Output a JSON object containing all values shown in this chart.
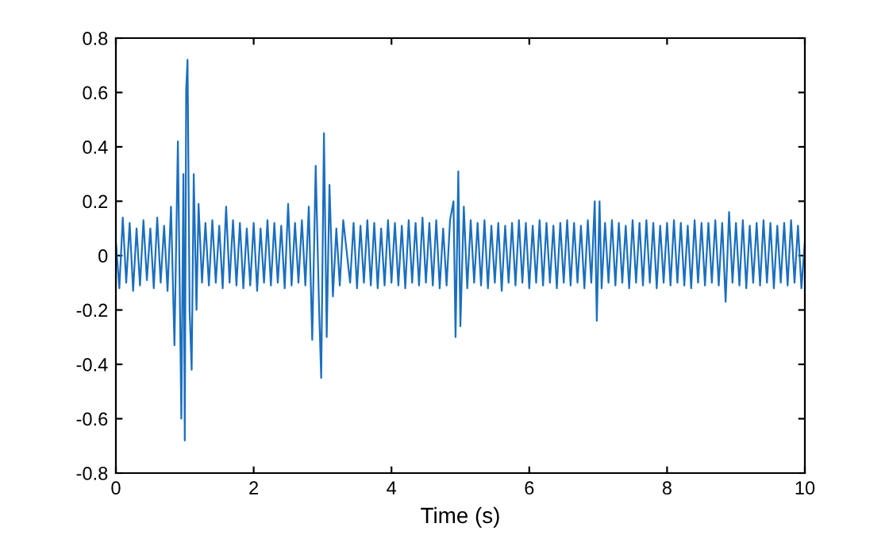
{
  "chart_data": {
    "type": "line",
    "xlabel": "Time (s)",
    "x": [
      0,
      0.05,
      0.1,
      0.15,
      0.2,
      0.25,
      0.3,
      0.35,
      0.4,
      0.45,
      0.5,
      0.55,
      0.6,
      0.65,
      0.7,
      0.75,
      0.8,
      0.85,
      0.9,
      0.95,
      0.98,
      1.0,
      1.02,
      1.04,
      1.07,
      1.1,
      1.13,
      1.17,
      1.2,
      1.25,
      1.3,
      1.35,
      1.4,
      1.45,
      1.5,
      1.55,
      1.6,
      1.65,
      1.7,
      1.75,
      1.8,
      1.85,
      1.9,
      1.95,
      2.0,
      2.05,
      2.1,
      2.15,
      2.2,
      2.25,
      2.3,
      2.35,
      2.4,
      2.45,
      2.5,
      2.55,
      2.6,
      2.65,
      2.7,
      2.75,
      2.8,
      2.85,
      2.9,
      2.95,
      2.98,
      3.02,
      3.06,
      3.1,
      3.15,
      3.2,
      3.25,
      3.3,
      3.4,
      3.45,
      3.5,
      3.55,
      3.6,
      3.65,
      3.7,
      3.75,
      3.8,
      3.85,
      3.9,
      3.95,
      4.0,
      4.05,
      4.1,
      4.15,
      4.2,
      4.25,
      4.3,
      4.35,
      4.4,
      4.45,
      4.5,
      4.55,
      4.6,
      4.65,
      4.7,
      4.75,
      4.8,
      4.85,
      4.9,
      4.93,
      4.97,
      5.0,
      5.05,
      5.1,
      5.15,
      5.2,
      5.25,
      5.3,
      5.35,
      5.4,
      5.45,
      5.5,
      5.55,
      5.6,
      5.65,
      5.7,
      5.75,
      5.8,
      5.85,
      5.9,
      5.95,
      6.0,
      6.05,
      6.1,
      6.15,
      6.2,
      6.25,
      6.3,
      6.35,
      6.4,
      6.45,
      6.5,
      6.55,
      6.6,
      6.65,
      6.7,
      6.75,
      6.8,
      6.85,
      6.9,
      6.95,
      6.98,
      7.02,
      7.05,
      7.1,
      7.15,
      7.2,
      7.25,
      7.3,
      7.35,
      7.4,
      7.45,
      7.5,
      7.55,
      7.6,
      7.65,
      7.7,
      7.75,
      7.8,
      7.85,
      7.9,
      7.95,
      8.0,
      8.05,
      8.1,
      8.15,
      8.2,
      8.25,
      8.3,
      8.35,
      8.4,
      8.45,
      8.5,
      8.55,
      8.6,
      8.65,
      8.7,
      8.75,
      8.8,
      8.85,
      8.9,
      8.95,
      9.0,
      9.05,
      9.1,
      9.15,
      9.2,
      9.25,
      9.3,
      9.35,
      9.4,
      9.45,
      9.5,
      9.55,
      9.6,
      9.65,
      9.7,
      9.75,
      9.8,
      9.85,
      9.9,
      9.95,
      10
    ],
    "series": [
      {
        "color": "#1a6fbf",
        "values": [
          0.05,
          -0.12,
          0.14,
          -0.1,
          0.12,
          -0.13,
          0.1,
          -0.11,
          0.13,
          -0.09,
          0.1,
          -0.12,
          0.14,
          -0.1,
          0.11,
          -0.13,
          0.18,
          -0.33,
          0.42,
          -0.6,
          0.3,
          -0.68,
          0.61,
          0.72,
          -0.2,
          -0.42,
          0.3,
          -0.2,
          0.19,
          -0.1,
          0.12,
          -0.11,
          0.13,
          -0.1,
          0.11,
          -0.12,
          0.18,
          -0.1,
          0.13,
          -0.11,
          0.12,
          -0.12,
          0.1,
          -0.11,
          0.12,
          -0.13,
          0.1,
          -0.1,
          0.13,
          -0.11,
          0.12,
          -0.1,
          0.11,
          -0.12,
          0.19,
          -0.11,
          0.12,
          -0.1,
          0.13,
          -0.11,
          0.18,
          -0.31,
          0.33,
          -0.2,
          -0.45,
          0.45,
          -0.3,
          0.26,
          -0.15,
          0.1,
          -0.11,
          0.13,
          -0.1,
          0.12,
          -0.12,
          0.11,
          -0.1,
          0.13,
          -0.11,
          0.12,
          -0.12,
          0.1,
          -0.11,
          0.13,
          -0.1,
          0.12,
          -0.11,
          0.11,
          -0.12,
          0.13,
          -0.1,
          0.12,
          -0.11,
          0.14,
          -0.1,
          0.12,
          -0.11,
          0.13,
          -0.12,
          0.1,
          -0.11,
          0.13,
          0.2,
          -0.3,
          0.31,
          -0.26,
          0.18,
          -0.12,
          0.13,
          -0.1,
          0.12,
          -0.11,
          0.13,
          -0.12,
          0.11,
          -0.1,
          0.12,
          -0.13,
          0.11,
          -0.1,
          0.12,
          -0.11,
          0.13,
          -0.1,
          0.12,
          -0.12,
          0.11,
          -0.1,
          0.13,
          -0.11,
          0.12,
          -0.1,
          0.11,
          -0.12,
          0.12,
          -0.1,
          0.13,
          -0.11,
          0.12,
          -0.1,
          0.11,
          -0.12,
          0.13,
          -0.1,
          0.2,
          -0.24,
          0.2,
          -0.12,
          0.12,
          -0.1,
          0.13,
          -0.11,
          0.12,
          -0.1,
          0.11,
          -0.12,
          0.13,
          -0.1,
          0.12,
          -0.11,
          0.13,
          -0.1,
          0.12,
          -0.12,
          0.11,
          -0.1,
          0.12,
          -0.11,
          0.13,
          -0.1,
          0.12,
          -0.11,
          0.11,
          -0.12,
          0.13,
          -0.1,
          0.12,
          -0.11,
          0.12,
          -0.1,
          0.13,
          -0.11,
          0.12,
          -0.17,
          0.16,
          -0.1,
          0.12,
          -0.11,
          0.13,
          -0.12,
          0.11,
          -0.1,
          0.12,
          -0.11,
          0.13,
          -0.1,
          0.12,
          -0.12,
          0.11,
          -0.1,
          0.12,
          -0.11,
          0.13,
          -0.1,
          0.11,
          -0.12,
          0.05
        ]
      }
    ],
    "xlim": [
      0,
      10
    ],
    "ylim": [
      -0.8,
      0.8
    ],
    "xticks": [
      0,
      2,
      4,
      6,
      8,
      10
    ],
    "yticks": [
      -0.8,
      -0.6,
      -0.4,
      -0.2,
      0,
      0.2,
      0.4,
      0.6,
      0.8
    ],
    "grid": false
  }
}
